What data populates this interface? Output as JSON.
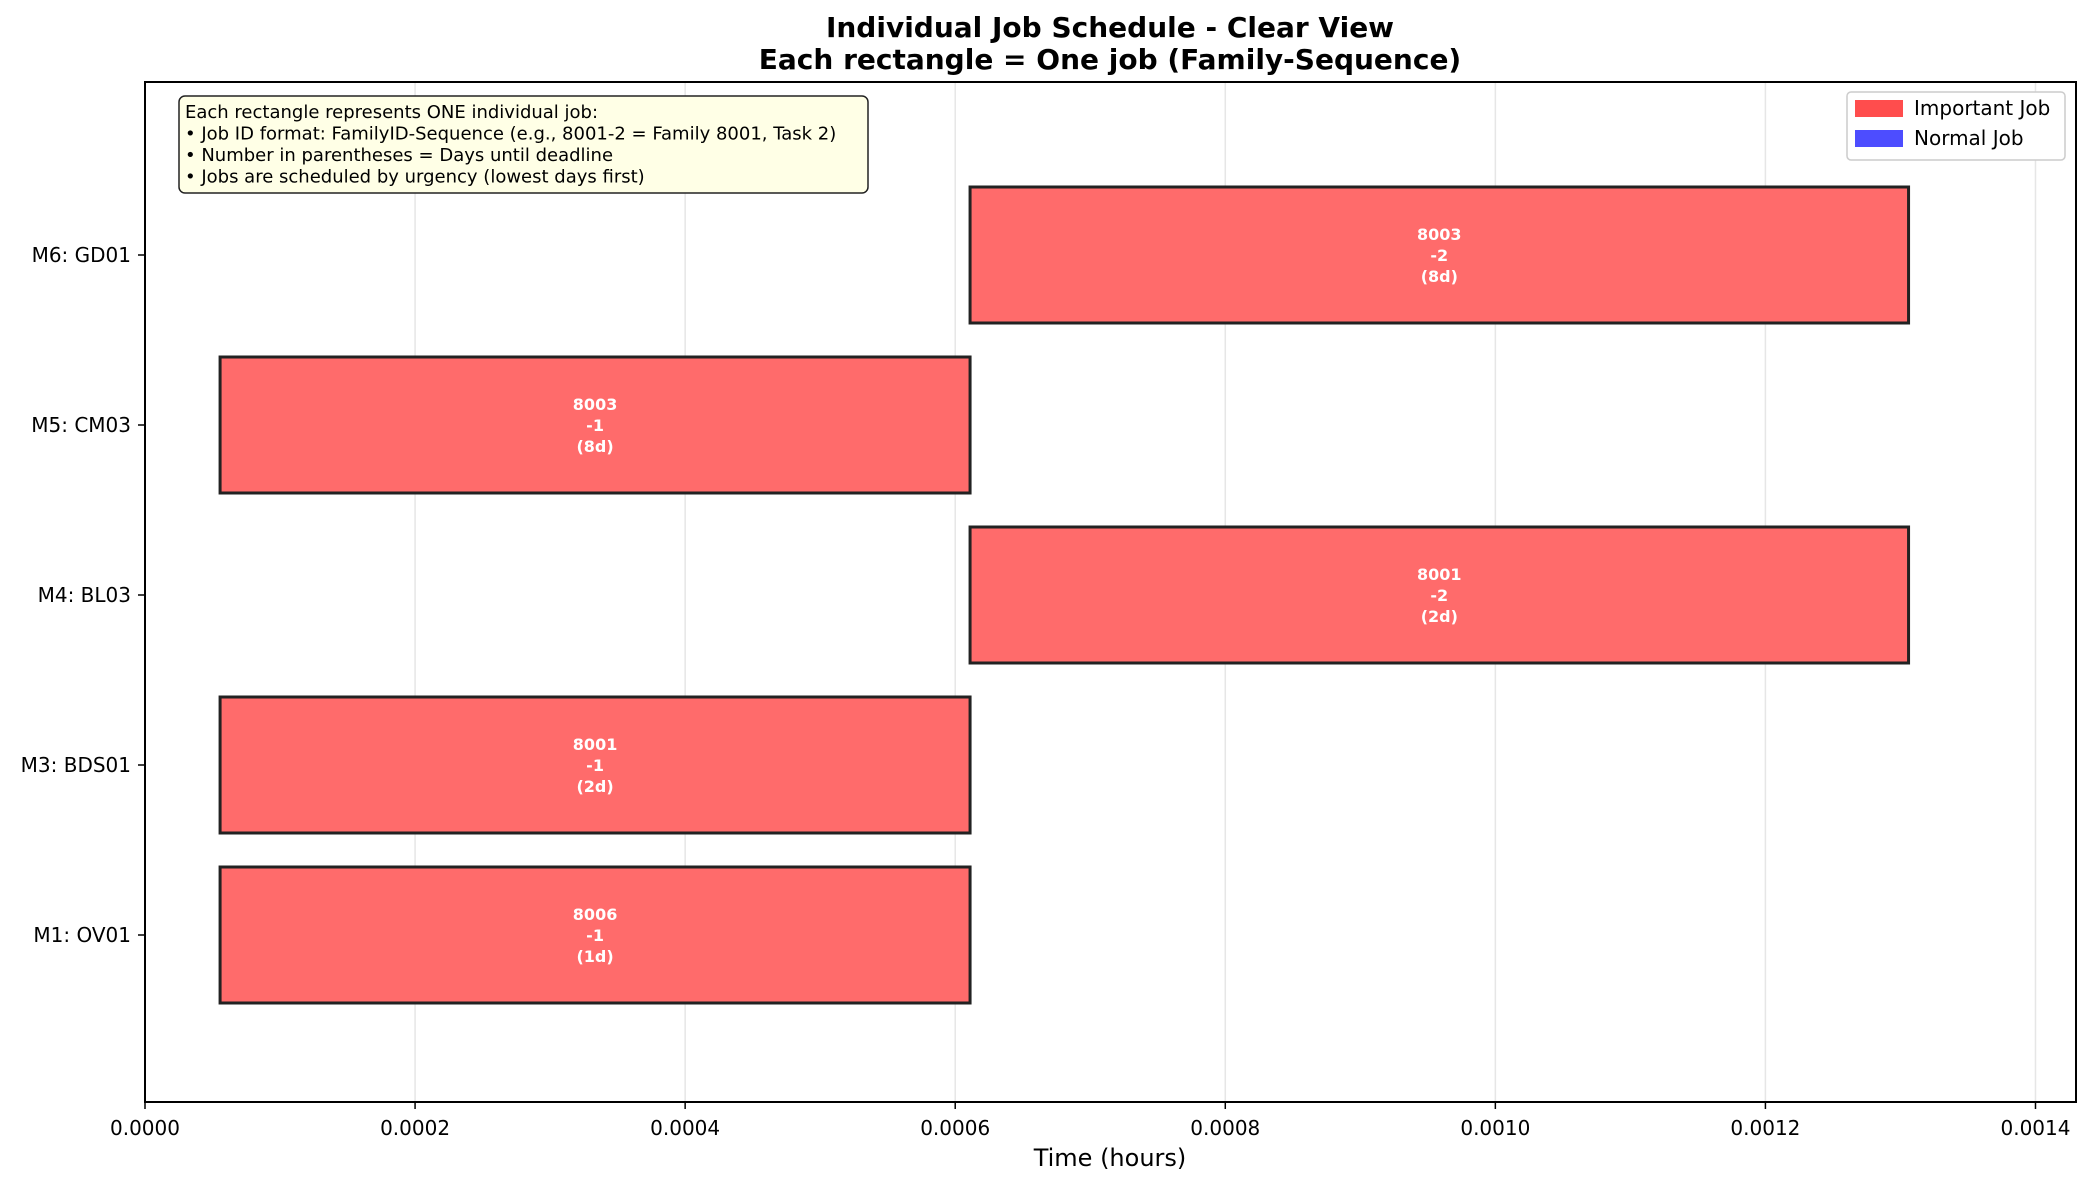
{
  "chart_data": {
    "type": "gantt",
    "title": "Individual Job Schedule - Clear View",
    "subtitle": "Each rectangle = One job (Family-Sequence)",
    "xlabel": "Time (hours)",
    "ylabel": "",
    "xlim": [
      0,
      0.00143
    ],
    "x_ticks": [
      "0.0000",
      "0.0002",
      "0.0004",
      "0.0006",
      "0.0008",
      "0.0010",
      "0.0012",
      "0.0014"
    ],
    "x_tick_values": [
      0,
      0.0002,
      0.0004,
      0.0006,
      0.0008,
      0.001,
      0.0012,
      0.0014
    ],
    "grid": "x",
    "machines": [
      "M1: OV01",
      "M3: BDS01",
      "M4: BL03",
      "M5: CM03",
      "M6: GD01"
    ],
    "jobs": [
      {
        "machine": "M1: OV01",
        "family": "8006",
        "seq": "-1",
        "days": "(1d)",
        "start": 5.56e-05,
        "end": 0.000611,
        "type": "Important Job"
      },
      {
        "machine": "M3: BDS01",
        "family": "8001",
        "seq": "-1",
        "days": "(2d)",
        "start": 5.56e-05,
        "end": 0.000611,
        "type": "Important Job"
      },
      {
        "machine": "M4: BL03",
        "family": "8001",
        "seq": "-2",
        "days": "(2d)",
        "start": 0.000611,
        "end": 0.001306,
        "type": "Important Job"
      },
      {
        "machine": "M5: CM03",
        "family": "8003",
        "seq": "-1",
        "days": "(8d)",
        "start": 5.56e-05,
        "end": 0.000611,
        "type": "Important Job"
      },
      {
        "machine": "M6: GD01",
        "family": "8003",
        "seq": "-2",
        "days": "(8d)",
        "start": 0.000611,
        "end": 0.001306,
        "type": "Important Job"
      }
    ],
    "legend": {
      "placement": "top-right",
      "entries": [
        {
          "label": "Important Job",
          "color": "#ff4d4d"
        },
        {
          "label": "Normal Job",
          "color": "#4d4dff"
        }
      ]
    },
    "annotation": {
      "placement": "top-left",
      "lines": [
        "Each rectangle represents ONE individual job:",
        "• Job ID format: FamilyID-Sequence (e.g., 8001-2 = Family 8001, Task 2)",
        "• Number in parentheses = Days until deadline",
        "• Jobs are scheduled by urgency (lowest days first)"
      ]
    },
    "colors": {
      "important_bar": "#ff6b6b",
      "bar_edge": "#222222",
      "annotation_bg": "#ffffe6"
    }
  }
}
